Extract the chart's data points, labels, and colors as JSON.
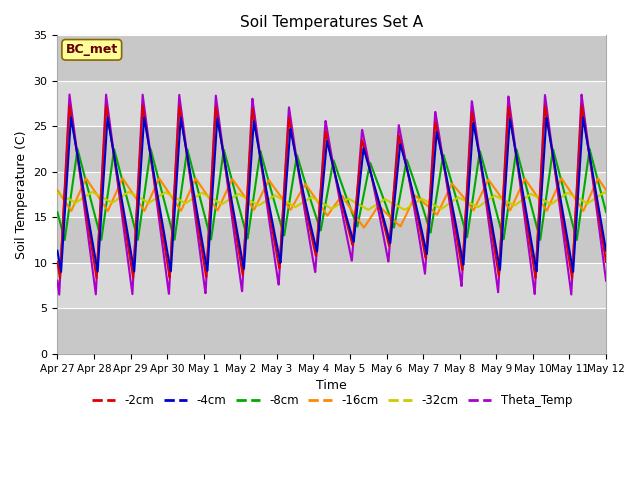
{
  "title": "Soil Temperatures Set A",
  "xlabel": "Time",
  "ylabel": "Soil Temperature (C)",
  "ylim": [
    0,
    35
  ],
  "yticks": [
    0,
    5,
    10,
    15,
    20,
    25,
    30,
    35
  ],
  "fig_bg": "#ffffff",
  "plot_bg": "#d8d8d8",
  "annotation_text": "BC_met",
  "annotation_bg": "#ffff99",
  "annotation_border": "#886600",
  "series_colors": {
    "-2cm": "#dd0000",
    "-4cm": "#0000cc",
    "-8cm": "#00aa00",
    "-16cm": "#ff8800",
    "-32cm": "#cccc00",
    "Theta_Temp": "#aa00cc"
  },
  "x_tick_labels": [
    "Apr 27",
    "Apr 28",
    "Apr 29",
    "Apr 30",
    "May 1",
    "May 2",
    "May 3",
    "May 4",
    "May 5",
    "May 6",
    "May 7",
    "May 8",
    "May 9",
    "May 10",
    "May 11",
    "May 12"
  ],
  "x_tick_positions": [
    0,
    1,
    2,
    3,
    4,
    5,
    6,
    7,
    8,
    9,
    10,
    11,
    12,
    13,
    14,
    15
  ],
  "legend_labels": [
    "-2cm",
    "-4cm",
    "-8cm",
    "-16cm",
    "-32cm",
    "Theta_Temp"
  ]
}
